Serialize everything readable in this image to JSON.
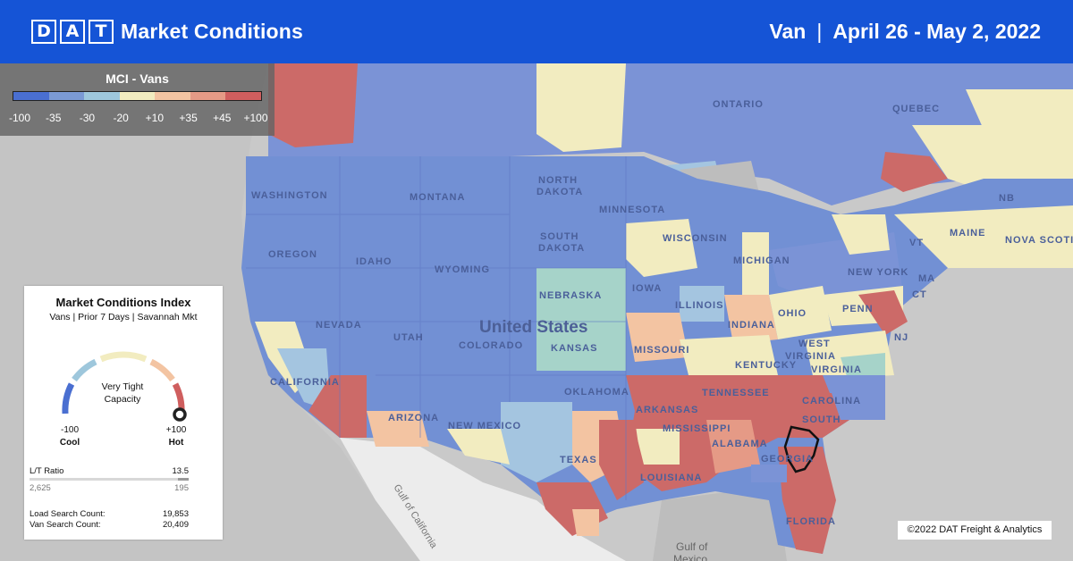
{
  "header": {
    "logo_letters": [
      "D",
      "A",
      "T"
    ],
    "title": "Market Conditions",
    "equipment": "Van",
    "separator": "|",
    "date_range": "April 26 - May 2, 2022"
  },
  "legend": {
    "title": "MCI - Vans",
    "ticks": [
      "-100",
      "-35",
      "-30",
      "-20",
      "+10",
      "+35",
      "+45",
      "+100"
    ],
    "colors": [
      "#4a6fd1",
      "#7b9ad4",
      "#9ec7dc",
      "#f2ecc0",
      "#f3c4a2",
      "#e59a86",
      "#cf5e5e"
    ]
  },
  "mci_card": {
    "title": "Market Conditions Index",
    "subtitle": "Vans | Prior 7 Days | Savannah Mkt",
    "gauge_label_line1": "Very Tight",
    "gauge_label_line2": "Capacity",
    "gauge_value": 100,
    "min_label": "-100",
    "max_label": "+100",
    "cool_label": "Cool",
    "hot_label": "Hot",
    "lt_ratio_label": "L/T Ratio",
    "lt_ratio_value": "13.5",
    "loads_value": "2,625",
    "trucks_value": "195",
    "lt_fill_fraction": 0.07,
    "load_search_label": "Load Search Count:",
    "load_search_value": "19,853",
    "van_search_label": "Van Search Count:",
    "van_search_value": "20,409"
  },
  "map_labels": {
    "ontario": "ONTARIO",
    "quebec": "QUEBEC",
    "north_dakota_1": "NORTH",
    "north_dakota_2": "DAKOTA",
    "south_dakota_1": "SOUTH",
    "south_dakota_2": "DAKOTA",
    "montana": "MONTANA",
    "washington": "WASHINGTON",
    "oregon": "OREGON",
    "idaho": "IDAHO",
    "wyoming": "WYOMING",
    "nebraska": "NEBRASKA",
    "minnesota": "MINNESOTA",
    "wisconsin": "WISCONSIN",
    "michigan": "MICHIGAN",
    "iowa": "IOWA",
    "illinois": "ILLINOIS",
    "indiana": "INDIANA",
    "ohio": "OHIO",
    "penn": "PENN",
    "new_york": "NEW YORK",
    "maine": "MAINE",
    "nova_scotia": "NOVA SCOTIA",
    "nb": "NB",
    "vt": "VT",
    "ma": "MA",
    "ct": "CT",
    "nj": "NJ",
    "nevada": "NEVADA",
    "utah": "UTAH",
    "colorado": "COLORADO",
    "kansas": "KANSAS",
    "missouri": "MISSOURI",
    "california": "CALIFORNIA",
    "arizona": "ARIZONA",
    "new_mexico": "NEW MEXICO",
    "oklahoma": "OKLAHOMA",
    "texas": "TEXAS",
    "arkansas": "ARKANSAS",
    "mississippi": "MISSISSIPPI",
    "louisiana": "LOUISIANA",
    "alabama": "ALABAMA",
    "georgia": "GEORGIA",
    "tennessee": "TENNESSEE",
    "kentucky": "KENTUCKY",
    "west_virginia_1": "WEST",
    "west_virginia_2": "VIRGINIA",
    "virginia": "VIRGINIA",
    "carolina": "CAROLINA",
    "south_carolina": "SOUTH",
    "florida": "FLORIDA",
    "united_states": "United States",
    "gulf_of_mexico_1": "Gulf of",
    "gulf_of_mexico_2": "Mexico",
    "gulf_of_california": "Gulf of California"
  },
  "copyright": "©2022 DAT Freight & Analytics"
}
